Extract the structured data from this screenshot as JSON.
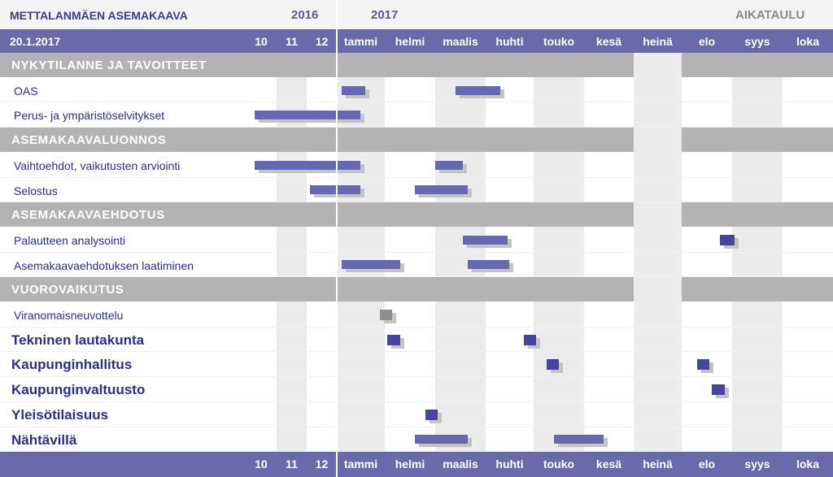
{
  "header": {
    "title": "METTALANMÄEN ASEMAKAAVA",
    "year_2016": "2016",
    "year_2017": "2017",
    "right_label": "AIKATAULU",
    "date": "20.1.2017"
  },
  "months": [
    "10",
    "11",
    "12",
    "tammi",
    "helmi",
    "maalis",
    "huhti",
    "touko",
    "kesä",
    "heinä",
    "elo",
    "syys",
    "loka"
  ],
  "rows": [
    {
      "type": "section",
      "label": "NYKYTILANNE JA TAVOITTEET"
    },
    {
      "type": "task",
      "label": "OAS",
      "bold": false,
      "bars": [
        {
          "start": 3.1,
          "end": 3.6,
          "color": "blue"
        },
        {
          "start": 5.4,
          "end": 6.3,
          "color": "blue"
        }
      ]
    },
    {
      "type": "task",
      "label": "Perus- ja ympäristöselvitykset",
      "bold": false,
      "bars": [
        {
          "start": 0.3,
          "end": 3.5,
          "color": "blue"
        }
      ]
    },
    {
      "type": "section",
      "label": "ASEMAKAAVALUONNOS"
    },
    {
      "type": "task",
      "label": "Vaihtoehdot, vaikutusten arviointi",
      "bold": false,
      "bars": [
        {
          "start": 0.3,
          "end": 3.5,
          "color": "blue"
        },
        {
          "start": 5.0,
          "end": 5.55,
          "color": "blue"
        }
      ]
    },
    {
      "type": "task",
      "label": "Selostus",
      "bold": false,
      "bars": [
        {
          "start": 2.1,
          "end": 3.5,
          "color": "blue"
        },
        {
          "start": 4.6,
          "end": 5.65,
          "color": "blue"
        }
      ]
    },
    {
      "type": "section",
      "label": "ASEMAKAAVAEHDOTUS"
    },
    {
      "type": "task",
      "label": "Palautteen analysointi",
      "bold": false,
      "bars": [
        {
          "start": 5.55,
          "end": 6.45,
          "color": "blue"
        },
        {
          "start": 10.75,
          "end": 11.05,
          "color": "blue"
        }
      ]
    },
    {
      "type": "task",
      "label": "Asemakaavaehdotuksen laatiminen",
      "bold": false,
      "bars": [
        {
          "start": 3.1,
          "end": 4.3,
          "color": "blue"
        },
        {
          "start": 5.65,
          "end": 6.5,
          "color": "blue"
        }
      ]
    },
    {
      "type": "section",
      "label": "VUOROVAIKUTUS"
    },
    {
      "type": "task",
      "label": "Viranomaisneuvottelu",
      "bold": false,
      "bars": [
        {
          "start": 3.9,
          "end": 4.15,
          "color": "gray"
        }
      ]
    },
    {
      "type": "task",
      "label": "Tekninen lautakunta",
      "bold": true,
      "bars": [
        {
          "start": 4.05,
          "end": 4.3,
          "color": "blue"
        },
        {
          "start": 6.8,
          "end": 7.05,
          "color": "blue"
        }
      ]
    },
    {
      "type": "task",
      "label": "Kaupunginhallitus",
      "bold": true,
      "bars": [
        {
          "start": 7.25,
          "end": 7.5,
          "color": "blue"
        },
        {
          "start": 10.3,
          "end": 10.55,
          "color": "blue"
        }
      ]
    },
    {
      "type": "task",
      "label": "Kaupunginvaltuusto",
      "bold": true,
      "bars": [
        {
          "start": 10.6,
          "end": 10.85,
          "color": "blue"
        }
      ]
    },
    {
      "type": "task",
      "label": "Yleisötilaisuus",
      "bold": true,
      "bars": [
        {
          "start": 4.8,
          "end": 5.05,
          "color": "blue"
        }
      ]
    },
    {
      "type": "task",
      "label": "Nähtävillä",
      "bold": true,
      "bars": [
        {
          "start": 4.6,
          "end": 5.65,
          "color": "blue"
        },
        {
          "start": 7.4,
          "end": 8.4,
          "color": "blue"
        }
      ]
    }
  ],
  "colors": {
    "header_bar": "#6a6aa8",
    "section_band": "#b3b3b3",
    "bar_blue": "#6868b0",
    "bar_dark": "#46469a",
    "bar_gray": "#8f8f8f",
    "bar_shadow": "#c4c4c4",
    "stripe": "#ececec",
    "label_text": "#2a2f85"
  }
}
